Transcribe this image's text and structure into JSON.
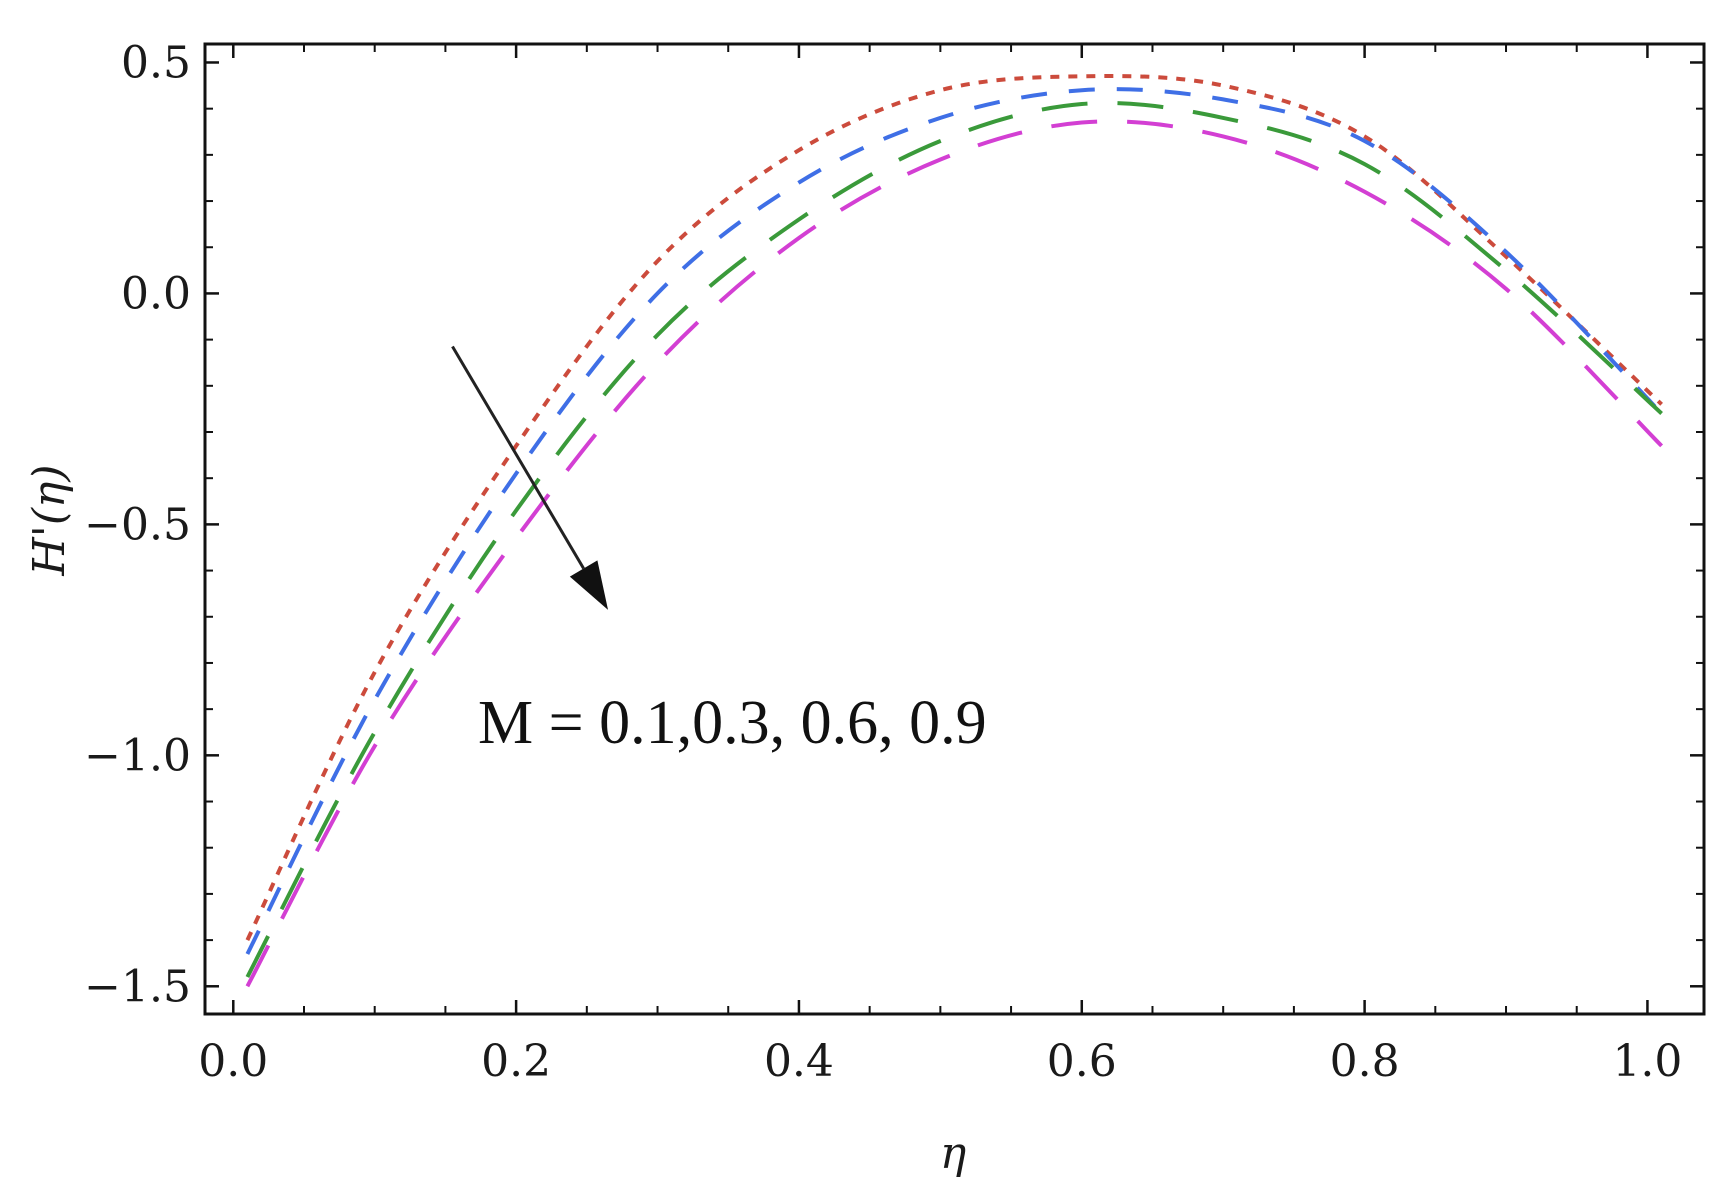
{
  "chart_data": {
    "type": "line",
    "xlabel": "η",
    "ylabel": "H'(η)",
    "xlim": [
      -0.02,
      1.04
    ],
    "ylim": [
      -1.56,
      0.54
    ],
    "xticks": [
      "0.0",
      "0.2",
      "0.4",
      "0.6",
      "0.8",
      "1.0"
    ],
    "xtick_values": [
      0.0,
      0.2,
      0.4,
      0.6,
      0.8,
      1.0
    ],
    "yticks": [
      "0.5",
      "0.0",
      "-0.5",
      "-1.0",
      "-1.5"
    ],
    "ytick_values": [
      0.5,
      0.0,
      -0.5,
      -1.0,
      -1.5
    ],
    "grid": false,
    "annotation": {
      "text": "M =  0.1,0.3, 0.6, 0.9",
      "arrow_from": [
        0.155,
        -0.115
      ],
      "arrow_to": [
        0.265,
        -0.685
      ]
    },
    "series": [
      {
        "color": "#cc4b3c",
        "dash": "dotted",
        "x": [
          0.01,
          0.1,
          0.2,
          0.3,
          0.4,
          0.5,
          0.6,
          0.7,
          0.8,
          0.9,
          1.01
        ],
        "y": [
          -1.4,
          -0.82,
          -0.33,
          0.07,
          0.31,
          0.44,
          0.47,
          0.45,
          0.34,
          0.08,
          -0.24
        ]
      },
      {
        "color": "#3f6fe6",
        "dash": "dashed",
        "x": [
          0.01,
          0.1,
          0.2,
          0.3,
          0.4,
          0.5,
          0.6,
          0.7,
          0.8,
          0.9,
          1.01
        ],
        "y": [
          -1.43,
          -0.88,
          -0.39,
          0.0,
          0.24,
          0.38,
          0.44,
          0.42,
          0.33,
          0.09,
          -0.26
        ]
      },
      {
        "color": "#3a9a3a",
        "dash": "long-dash",
        "x": [
          0.01,
          0.1,
          0.2,
          0.3,
          0.4,
          0.5,
          0.6,
          0.7,
          0.8,
          0.9,
          1.01
        ],
        "y": [
          -1.48,
          -0.95,
          -0.47,
          -0.09,
          0.16,
          0.33,
          0.41,
          0.38,
          0.28,
          0.05,
          -0.26
        ]
      },
      {
        "color": "#d33fd3",
        "dash": "long-dash",
        "x": [
          0.01,
          0.1,
          0.2,
          0.3,
          0.4,
          0.5,
          0.6,
          0.7,
          0.8,
          0.9,
          1.01
        ],
        "y": [
          -1.5,
          -0.98,
          -0.53,
          -0.15,
          0.12,
          0.29,
          0.37,
          0.34,
          0.22,
          0.01,
          -0.33
        ]
      }
    ]
  }
}
